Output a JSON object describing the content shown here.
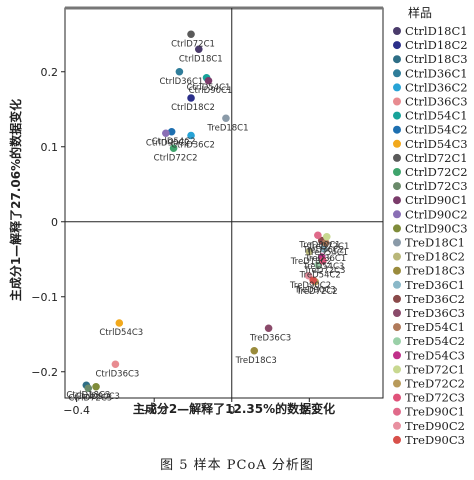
{
  "chart_data": {
    "type": "scatter",
    "xlabel": "主成分2—解释了12.35%的数据变化",
    "ylabel": "主成分1—解释了27.06%的数据变化",
    "xlim": [
      -0.43,
      0.39
    ],
    "ylim": [
      -0.235,
      0.285
    ],
    "xticks": [
      -0.4,
      -0.2,
      0,
      0.2
    ],
    "yticks": [
      -0.2,
      -0.1,
      0,
      0.1,
      0.2
    ],
    "xtick_labels": [
      "−0.4",
      "−0.2",
      "0",
      "0.2"
    ],
    "ytick_labels": [
      "−0.2",
      "−0.1",
      "0",
      "0.1",
      "0.2"
    ],
    "reference_lines": {
      "x": 0,
      "y": 0
    },
    "legend_title": "样品",
    "legend_position": "right",
    "series": [
      {
        "name": "CtrlD18C1",
        "color": "#4a3b6b",
        "x": -0.085,
        "y": 0.23,
        "label": "CtrlD18C1"
      },
      {
        "name": "CtrlD18C2",
        "color": "#2b2f8a",
        "x": -0.105,
        "y": 0.165,
        "label": "CtrlD18C2"
      },
      {
        "name": "CtrlD18C3",
        "color": "#2e6e86",
        "x": -0.375,
        "y": -0.218,
        "label": "CtrlD18C3"
      },
      {
        "name": "CtrlD36C1",
        "color": "#2f7d9a",
        "x": -0.135,
        "y": 0.2,
        "label": "CtrlD36C1"
      },
      {
        "name": "CtrlD36C2",
        "color": "#27a3d6",
        "x": -0.105,
        "y": 0.115,
        "label": "CtrlD36C2"
      },
      {
        "name": "CtrlD36C3",
        "color": "#e88b90",
        "x": -0.3,
        "y": -0.19,
        "label": "CtrlD36C3"
      },
      {
        "name": "CtrlD54C1",
        "color": "#18a39a",
        "x": -0.065,
        "y": 0.192,
        "label": "CtrlD54C1"
      },
      {
        "name": "CtrlD54C2",
        "color": "#1d6fb0",
        "x": -0.155,
        "y": 0.12,
        "label": "CtrlD54C2"
      },
      {
        "name": "CtrlD54C3",
        "color": "#f2a91c",
        "x": -0.29,
        "y": -0.135,
        "label": "CtrlD54C3"
      },
      {
        "name": "CtrlD72C1",
        "color": "#5a5a5a",
        "x": -0.105,
        "y": 0.25,
        "label": "CtrlD72C1"
      },
      {
        "name": "CtrlD72C2",
        "color": "#3fa46c",
        "x": -0.15,
        "y": 0.098,
        "label": "CtrlD72C2"
      },
      {
        "name": "CtrlD72C3",
        "color": "#6a8a6a",
        "x": -0.37,
        "y": -0.222,
        "label": "CtrlD72C3"
      },
      {
        "name": "CtrlD90C1",
        "color": "#7a3b6a",
        "x": -0.06,
        "y": 0.188,
        "label": "CtrlD90C1"
      },
      {
        "name": "CtrlD90C2",
        "color": "#8a6fb5",
        "x": -0.17,
        "y": 0.118,
        "label": "CtrlD90C2"
      },
      {
        "name": "CtrlD90C3",
        "color": "#7f8c3a",
        "x": -0.35,
        "y": -0.22,
        "label": "CtrlD90C3"
      },
      {
        "name": "TreD18C1",
        "color": "#8a9aa8",
        "x": -0.015,
        "y": 0.138,
        "label": "TreD18C1"
      },
      {
        "name": "TreD18C2",
        "color": "#b9b779",
        "x": 0.2,
        "y": -0.04,
        "label": "TreD18C2"
      },
      {
        "name": "TreD18C3",
        "color": "#9a8b3c",
        "x": 0.058,
        "y": -0.172,
        "label": "TreD18C3"
      },
      {
        "name": "TreD36C1",
        "color": "#8ab8c8",
        "x": 0.237,
        "y": -0.036,
        "label": "TreD36C1"
      },
      {
        "name": "TreD36C2",
        "color": "#8a4a4a",
        "x": 0.232,
        "y": -0.025,
        "label": "TreD36C2"
      },
      {
        "name": "TreD36C3",
        "color": "#8a4a6a",
        "x": 0.095,
        "y": -0.142,
        "label": "TreD36C3"
      },
      {
        "name": "TreD54C1",
        "color": "#b07a5a",
        "x": 0.242,
        "y": -0.028,
        "label": "TreD54C1"
      },
      {
        "name": "TreD54C2",
        "color": "#9ad0a8",
        "x": 0.223,
        "y": -0.058,
        "label": "TreD54C2"
      },
      {
        "name": "TreD54C3",
        "color": "#c0308a",
        "x": 0.232,
        "y": -0.047,
        "label": "TreD54C3"
      },
      {
        "name": "TreD72C1",
        "color": "#c8d890",
        "x": 0.245,
        "y": -0.02,
        "label": "TreD72C1"
      },
      {
        "name": "TreD72C2",
        "color": "#b89a5a",
        "x": 0.215,
        "y": -0.08,
        "label": "TreD72C2"
      },
      {
        "name": "TreD72C3",
        "color": "#e0527a",
        "x": 0.235,
        "y": -0.052,
        "label": "TreD72C3"
      },
      {
        "name": "TreD90C1",
        "color": "#e06a8a",
        "x": 0.222,
        "y": -0.018,
        "label": "TreD90C1"
      },
      {
        "name": "TreD90C2",
        "color": "#e890a0",
        "x": 0.198,
        "y": -0.072,
        "label": "TreD90C2"
      },
      {
        "name": "TreD90C3",
        "color": "#d8504a",
        "x": 0.21,
        "y": -0.078,
        "label": "TreD90C3"
      }
    ]
  },
  "caption": "图 5   样本 PCoA 分析图"
}
